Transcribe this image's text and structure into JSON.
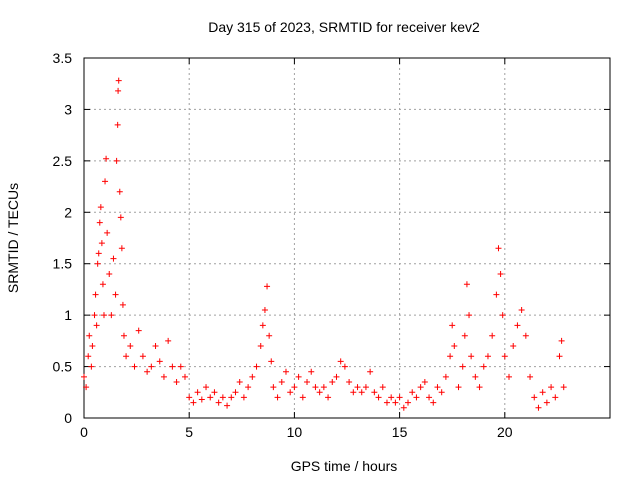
{
  "chart_data": {
    "type": "scatter",
    "title": "Day 315 of 2023, SRMTID for receiver kev2",
    "xlabel": "GPS time / hours",
    "ylabel": "SRMTID / TECUs",
    "xlim": [
      0,
      25
    ],
    "ylim": [
      0,
      3.5
    ],
    "x_ticks": [
      0,
      5,
      10,
      15,
      20
    ],
    "x_tick_labels": [
      "0",
      "5",
      "10",
      "15",
      "20"
    ],
    "y_ticks": [
      0,
      0.5,
      1,
      1.5,
      2,
      2.5,
      3,
      3.5
    ],
    "y_tick_labels": [
      "0",
      "0.5",
      "1",
      "1.5",
      "2",
      "2.5",
      "3",
      "3.5"
    ],
    "grid": true,
    "marker": "+",
    "marker_color": "#ff0000",
    "series": [
      {
        "name": "kev2",
        "points": [
          [
            0.0,
            0.4
          ],
          [
            0.1,
            0.3
          ],
          [
            0.2,
            0.6
          ],
          [
            0.25,
            0.8
          ],
          [
            0.35,
            0.5
          ],
          [
            0.4,
            0.7
          ],
          [
            0.5,
            1.0
          ],
          [
            0.55,
            1.2
          ],
          [
            0.6,
            0.9
          ],
          [
            0.65,
            1.5
          ],
          [
            0.7,
            1.6
          ],
          [
            0.75,
            1.9
          ],
          [
            0.8,
            2.05
          ],
          [
            0.85,
            1.7
          ],
          [
            0.9,
            1.3
          ],
          [
            0.95,
            1.0
          ],
          [
            1.0,
            2.3
          ],
          [
            1.05,
            2.52
          ],
          [
            1.1,
            1.8
          ],
          [
            1.2,
            1.4
          ],
          [
            1.3,
            1.0
          ],
          [
            1.4,
            1.55
          ],
          [
            1.5,
            1.2
          ],
          [
            1.55,
            2.5
          ],
          [
            1.6,
            2.85
          ],
          [
            1.62,
            3.18
          ],
          [
            1.65,
            3.28
          ],
          [
            1.7,
            2.2
          ],
          [
            1.75,
            1.95
          ],
          [
            1.8,
            1.65
          ],
          [
            1.85,
            1.1
          ],
          [
            1.9,
            0.8
          ],
          [
            2.0,
            0.6
          ],
          [
            2.2,
            0.7
          ],
          [
            2.4,
            0.5
          ],
          [
            2.6,
            0.85
          ],
          [
            2.8,
            0.6
          ],
          [
            3.0,
            0.45
          ],
          [
            3.2,
            0.5
          ],
          [
            3.4,
            0.7
          ],
          [
            3.6,
            0.55
          ],
          [
            3.8,
            0.4
          ],
          [
            4.0,
            0.75
          ],
          [
            4.2,
            0.5
          ],
          [
            4.4,
            0.35
          ],
          [
            4.6,
            0.5
          ],
          [
            4.8,
            0.4
          ],
          [
            5.0,
            0.2
          ],
          [
            5.2,
            0.15
          ],
          [
            5.4,
            0.25
          ],
          [
            5.6,
            0.18
          ],
          [
            5.8,
            0.3
          ],
          [
            6.0,
            0.2
          ],
          [
            6.2,
            0.25
          ],
          [
            6.4,
            0.15
          ],
          [
            6.6,
            0.2
          ],
          [
            6.8,
            0.12
          ],
          [
            7.0,
            0.2
          ],
          [
            7.2,
            0.25
          ],
          [
            7.4,
            0.35
          ],
          [
            7.6,
            0.2
          ],
          [
            7.8,
            0.3
          ],
          [
            8.0,
            0.4
          ],
          [
            8.2,
            0.5
          ],
          [
            8.4,
            0.7
          ],
          [
            8.5,
            0.9
          ],
          [
            8.6,
            1.05
          ],
          [
            8.7,
            1.28
          ],
          [
            8.8,
            0.8
          ],
          [
            8.9,
            0.55
          ],
          [
            9.0,
            0.3
          ],
          [
            9.2,
            0.2
          ],
          [
            9.4,
            0.35
          ],
          [
            9.6,
            0.45
          ],
          [
            9.8,
            0.25
          ],
          [
            10.0,
            0.3
          ],
          [
            10.2,
            0.4
          ],
          [
            10.4,
            0.2
          ],
          [
            10.6,
            0.35
          ],
          [
            10.8,
            0.45
          ],
          [
            11.0,
            0.3
          ],
          [
            11.2,
            0.25
          ],
          [
            11.4,
            0.3
          ],
          [
            11.6,
            0.2
          ],
          [
            11.8,
            0.35
          ],
          [
            12.0,
            0.4
          ],
          [
            12.2,
            0.55
          ],
          [
            12.4,
            0.5
          ],
          [
            12.6,
            0.35
          ],
          [
            12.8,
            0.25
          ],
          [
            13.0,
            0.3
          ],
          [
            13.2,
            0.25
          ],
          [
            13.4,
            0.3
          ],
          [
            13.6,
            0.45
          ],
          [
            13.8,
            0.25
          ],
          [
            14.0,
            0.2
          ],
          [
            14.2,
            0.3
          ],
          [
            14.4,
            0.15
          ],
          [
            14.6,
            0.2
          ],
          [
            14.8,
            0.15
          ],
          [
            15.0,
            0.2
          ],
          [
            15.2,
            0.1
          ],
          [
            15.4,
            0.15
          ],
          [
            15.6,
            0.25
          ],
          [
            15.8,
            0.2
          ],
          [
            16.0,
            0.3
          ],
          [
            16.2,
            0.35
          ],
          [
            16.4,
            0.2
          ],
          [
            16.6,
            0.15
          ],
          [
            16.8,
            0.3
          ],
          [
            17.0,
            0.25
          ],
          [
            17.2,
            0.4
          ],
          [
            17.4,
            0.6
          ],
          [
            17.5,
            0.9
          ],
          [
            17.6,
            0.7
          ],
          [
            17.8,
            0.3
          ],
          [
            18.0,
            0.5
          ],
          [
            18.1,
            0.8
          ],
          [
            18.2,
            1.3
          ],
          [
            18.3,
            1.0
          ],
          [
            18.4,
            0.6
          ],
          [
            18.6,
            0.4
          ],
          [
            18.8,
            0.3
          ],
          [
            19.0,
            0.5
          ],
          [
            19.2,
            0.6
          ],
          [
            19.4,
            0.8
          ],
          [
            19.6,
            1.2
          ],
          [
            19.7,
            1.65
          ],
          [
            19.8,
            1.4
          ],
          [
            19.9,
            1.0
          ],
          [
            20.0,
            0.6
          ],
          [
            20.2,
            0.4
          ],
          [
            20.4,
            0.7
          ],
          [
            20.6,
            0.9
          ],
          [
            20.8,
            1.05
          ],
          [
            21.0,
            0.8
          ],
          [
            21.2,
            0.4
          ],
          [
            21.4,
            0.2
          ],
          [
            21.6,
            0.1
          ],
          [
            21.8,
            0.25
          ],
          [
            22.0,
            0.15
          ],
          [
            22.2,
            0.3
          ],
          [
            22.4,
            0.2
          ],
          [
            22.6,
            0.6
          ],
          [
            22.7,
            0.75
          ],
          [
            22.8,
            0.3
          ]
        ]
      }
    ]
  }
}
